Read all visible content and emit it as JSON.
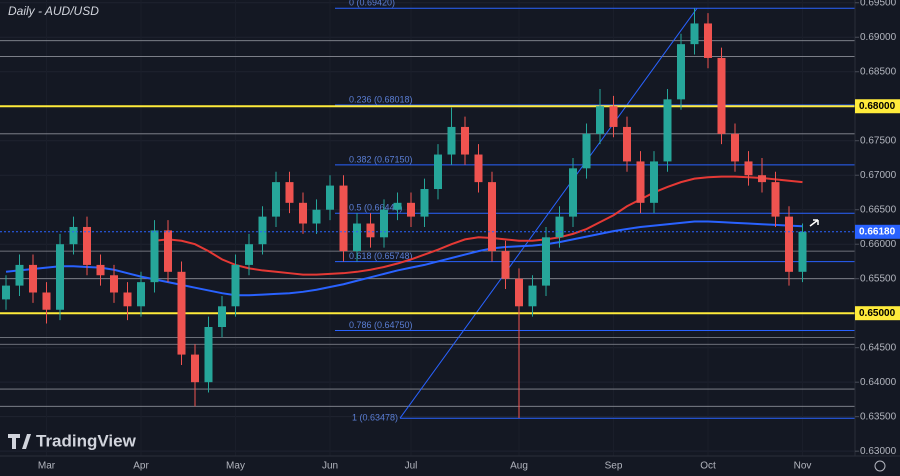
{
  "chart_data": {
    "type": "candlestick",
    "title": "Daily - AUD/USD",
    "watermark": "TradingView",
    "categories": [
      null,
      null,
      null,
      "Mar",
      null,
      null,
      null,
      null,
      null,
      null,
      "Apr",
      null,
      null,
      null,
      null,
      null,
      null,
      "May",
      null,
      null,
      null,
      null,
      null,
      null,
      "Jun",
      null,
      null,
      null,
      null,
      null,
      "Jul",
      null,
      null,
      null,
      null,
      null,
      null,
      null,
      "Aug",
      null,
      null,
      null,
      null,
      null,
      null,
      "Sep",
      null,
      null,
      null,
      null,
      null,
      null,
      "Oct",
      null,
      null,
      null,
      null,
      null,
      null,
      "Nov"
    ],
    "open": [
      0.652,
      0.654,
      0.657,
      0.653,
      0.6505,
      0.66,
      0.6625,
      0.657,
      0.6555,
      0.653,
      0.651,
      0.6545,
      0.662,
      0.656,
      0.644,
      0.64,
      0.648,
      0.651,
      0.657,
      0.66,
      0.664,
      0.669,
      0.666,
      0.663,
      0.665,
      0.6685,
      0.659,
      0.663,
      0.661,
      0.665,
      0.666,
      0.664,
      0.668,
      0.673,
      0.677,
      0.673,
      0.669,
      0.659,
      0.655,
      0.651,
      0.654,
      0.661,
      0.664,
      0.671,
      0.676,
      0.68,
      0.677,
      0.672,
      0.666,
      0.672,
      0.681,
      0.689,
      0.692,
      0.687,
      0.676,
      0.672,
      0.67,
      0.669,
      0.664,
      0.656
    ],
    "high": [
      0.6555,
      0.6585,
      0.6585,
      0.6545,
      0.6615,
      0.664,
      0.664,
      0.6585,
      0.657,
      0.6545,
      0.656,
      0.6635,
      0.6635,
      0.6575,
      0.6455,
      0.6495,
      0.6525,
      0.6585,
      0.6615,
      0.6655,
      0.6705,
      0.6705,
      0.6675,
      0.6665,
      0.67,
      0.67,
      0.6645,
      0.6645,
      0.6665,
      0.6675,
      0.6675,
      0.6695,
      0.6745,
      0.6798,
      0.6785,
      0.6745,
      0.6705,
      0.6605,
      0.6565,
      0.6555,
      0.6625,
      0.6655,
      0.6725,
      0.6775,
      0.6825,
      0.6815,
      0.6785,
      0.6735,
      0.6735,
      0.6825,
      0.6905,
      0.6942,
      0.6935,
      0.6885,
      0.6775,
      0.6735,
      0.6725,
      0.6705,
      0.6655,
      0.663
    ],
    "low": [
      0.6505,
      0.6525,
      0.6515,
      0.6485,
      0.649,
      0.6585,
      0.6555,
      0.654,
      0.6515,
      0.649,
      0.6495,
      0.653,
      0.6545,
      0.6425,
      0.6365,
      0.6385,
      0.6465,
      0.6495,
      0.6555,
      0.6585,
      0.6625,
      0.6645,
      0.6615,
      0.6615,
      0.6635,
      0.6575,
      0.6575,
      0.6595,
      0.6595,
      0.6635,
      0.6625,
      0.6625,
      0.6665,
      0.6715,
      0.6715,
      0.6675,
      0.6575,
      0.6535,
      0.6348,
      0.6495,
      0.6525,
      0.6595,
      0.6625,
      0.6695,
      0.6745,
      0.6755,
      0.6705,
      0.6645,
      0.6645,
      0.6705,
      0.6795,
      0.6875,
      0.6855,
      0.6745,
      0.6705,
      0.6685,
      0.6675,
      0.6625,
      0.654,
      0.6545
    ],
    "close": [
      0.654,
      0.657,
      0.653,
      0.6505,
      0.66,
      0.6625,
      0.657,
      0.6555,
      0.653,
      0.651,
      0.6545,
      0.662,
      0.656,
      0.644,
      0.64,
      0.648,
      0.651,
      0.657,
      0.66,
      0.664,
      0.669,
      0.666,
      0.663,
      0.665,
      0.6685,
      0.659,
      0.663,
      0.661,
      0.665,
      0.666,
      0.664,
      0.668,
      0.673,
      0.677,
      0.673,
      0.669,
      0.659,
      0.655,
      0.651,
      0.654,
      0.661,
      0.664,
      0.671,
      0.676,
      0.68,
      0.677,
      0.672,
      0.666,
      0.672,
      0.681,
      0.689,
      0.692,
      0.687,
      0.676,
      0.672,
      0.67,
      0.669,
      0.664,
      0.656,
      0.6618
    ],
    "up_color": "#26a69a",
    "down_color": "#ef5350",
    "series": [
      {
        "color": "#2962ff",
        "values": [
          0.656,
          0.6562,
          0.6564,
          0.6566,
          0.6568,
          0.6568,
          0.6567,
          0.6566,
          0.6563,
          0.6558,
          0.6553,
          0.6549,
          0.6545,
          0.6541,
          0.6537,
          0.6533,
          0.6529,
          0.6526,
          0.6526,
          0.6527,
          0.6528,
          0.6529,
          0.6531,
          0.6534,
          0.6538,
          0.6542,
          0.6547,
          0.6552,
          0.6557,
          0.6562,
          0.6566,
          0.657,
          0.6575,
          0.658,
          0.6585,
          0.659,
          0.6594,
          0.6596,
          0.6597,
          0.6598,
          0.66,
          0.6603,
          0.6607,
          0.6611,
          0.6615,
          0.6619,
          0.6622,
          0.6625,
          0.6627,
          0.6629,
          0.6631,
          0.6633,
          0.6633,
          0.6632,
          0.6631,
          0.663,
          0.6629,
          0.6628,
          0.6627,
          0.6626
        ]
      },
      {
        "color": "#e53935",
        "values": [
          null,
          null,
          null,
          null,
          null,
          null,
          null,
          null,
          null,
          null,
          null,
          0.6605,
          0.6607,
          0.6605,
          0.66,
          0.659,
          0.6578,
          0.657,
          0.6565,
          0.6562,
          0.656,
          0.6558,
          0.6556,
          0.6556,
          0.6557,
          0.6558,
          0.656,
          0.6563,
          0.6567,
          0.6572,
          0.6578,
          0.6585,
          0.6592,
          0.66,
          0.6607,
          0.661,
          0.6609,
          0.6607,
          0.6605,
          0.6605,
          0.6607,
          0.661,
          0.6615,
          0.6622,
          0.6632,
          0.6642,
          0.6655,
          0.6665,
          0.6675,
          0.6683,
          0.669,
          0.6695,
          0.6697,
          0.6698,
          0.6698,
          0.6697,
          0.6696,
          0.6694,
          0.6692,
          0.669
        ]
      }
    ],
    "ylim": [
      0.6293,
      0.6954
    ],
    "yticks": [
      {
        "value": 0.695,
        "label": "0.69500"
      },
      {
        "value": 0.69,
        "label": "0.69000"
      },
      {
        "value": 0.685,
        "label": "0.68500"
      },
      {
        "value": 0.68,
        "label": "0.68000"
      },
      {
        "value": 0.675,
        "label": "0.67500"
      },
      {
        "value": 0.67,
        "label": "0.67000"
      },
      {
        "value": 0.665,
        "label": "0.66500"
      },
      {
        "value": 0.66,
        "label": "0.66000"
      },
      {
        "value": 0.655,
        "label": "0.65500"
      },
      {
        "value": 0.65,
        "label": "0.65000"
      },
      {
        "value": 0.645,
        "label": "0.64500"
      },
      {
        "value": 0.64,
        "label": "0.64000"
      },
      {
        "value": 0.635,
        "label": "0.63500"
      },
      {
        "value": 0.63,
        "label": "0.63000"
      }
    ],
    "grid": true,
    "key_levels": [
      0.68,
      0.65
    ],
    "key_level_color": "#ffeb3b",
    "levels": [
      0.6895,
      0.6872,
      0.676,
      0.659,
      0.655,
      0.6465,
      0.6455,
      0.639,
      0.6365
    ],
    "level_color": "#8a8d96",
    "last_price": {
      "value": 0.6618,
      "label": "0.66180"
    },
    "fib_color": "#2962ff",
    "fib": [
      {
        "price": 0.6942,
        "label": "0 (0.69420)"
      },
      {
        "price": 0.68018,
        "label": "0.236 (0.68018)"
      },
      {
        "price": 0.6715,
        "label": "0.382 (0.67150)"
      },
      {
        "price": 0.66449,
        "label": "0.5 (0.66449)"
      },
      {
        "price": 0.65748,
        "label": "0.618 (0.65748)"
      },
      {
        "price": 0.6475,
        "label": "0.786 (0.64750)"
      },
      {
        "price": 0.63478,
        "label": "1 (0.63478)"
      }
    ]
  }
}
